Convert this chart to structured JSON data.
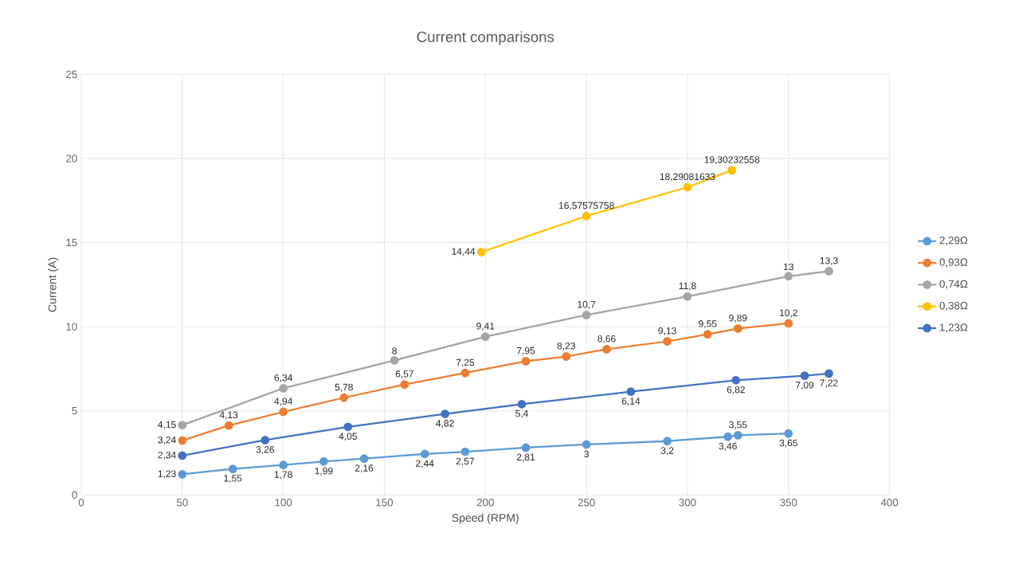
{
  "chart_data": {
    "type": "line",
    "title": "Current comparisons",
    "xlabel": "Speed (RPM)",
    "ylabel": "Current (A)",
    "xlim": [
      0,
      400
    ],
    "xticks": [
      0,
      50,
      100,
      150,
      200,
      250,
      300,
      350,
      400
    ],
    "ylim": [
      0,
      25
    ],
    "yticks": [
      0,
      5,
      10,
      15,
      20,
      25
    ],
    "grid": true,
    "legend": "right",
    "marker": "circle",
    "line_style": "solid",
    "series": [
      {
        "name": "2,29Ω",
        "color": "#5b9bd5",
        "x": [
          50,
          75,
          100,
          120,
          140,
          170,
          190,
          220,
          250,
          290,
          320,
          325,
          350
        ],
        "values": [
          1.23,
          1.55,
          1.78,
          1.99,
          2.16,
          2.44,
          2.57,
          2.81,
          3,
          3.2,
          3.46,
          3.55,
          3.65
        ],
        "value_labels": [
          "1,23",
          "1,55",
          "1,78",
          "1,99",
          "2,16",
          "2,44",
          "2,57",
          "2,81",
          "3",
          "3,2",
          "3,46",
          "3,55",
          "3,65"
        ]
      },
      {
        "name": "0,93Ω",
        "color": "#ed7d31",
        "x": [
          50,
          73,
          100,
          130,
          160,
          190,
          220,
          240,
          260,
          290,
          310,
          325,
          350
        ],
        "values": [
          3.24,
          4.13,
          4.94,
          5.78,
          6.57,
          7.25,
          7.95,
          8.23,
          8.66,
          9.13,
          9.55,
          9.89,
          10.2
        ],
        "value_labels": [
          "3,24",
          "4,13",
          "4,94",
          "5,78",
          "6,57",
          "7,25",
          "7,95",
          "8,23",
          "8,66",
          "9,13",
          "9,55",
          "9,89",
          "10,2"
        ]
      },
      {
        "name": "0,74Ω",
        "color": "#a5a5a5",
        "x": [
          50,
          100,
          155,
          200,
          250,
          300,
          350,
          370
        ],
        "values": [
          4.15,
          6.34,
          8,
          9.41,
          10.7,
          11.8,
          13,
          13.3
        ],
        "value_labels": [
          "4,15",
          "6,34",
          "8",
          "9,41",
          "10,7",
          "11,8",
          "13",
          "13,3"
        ]
      },
      {
        "name": "0,38Ω",
        "color": "#ffc000",
        "x": [
          198,
          250,
          300,
          322
        ],
        "values": [
          14.44,
          16.57575758,
          18.29081633,
          19.30232558
        ],
        "value_labels": [
          "14,44",
          "16,57575758",
          "18,29081633",
          "19,30232558"
        ]
      },
      {
        "name": "1,23Ω",
        "color": "#4472c4",
        "x": [
          50,
          91,
          132,
          180,
          218,
          272,
          324,
          358,
          370
        ],
        "values": [
          2.34,
          3.26,
          4.05,
          4.82,
          5.4,
          6.14,
          6.82,
          7.09,
          7.22
        ],
        "value_labels": [
          "2,34",
          "3,26",
          "4,05",
          "4,82",
          "5,4",
          "6,14",
          "6,82",
          "7,09",
          "7,22"
        ]
      }
    ]
  }
}
